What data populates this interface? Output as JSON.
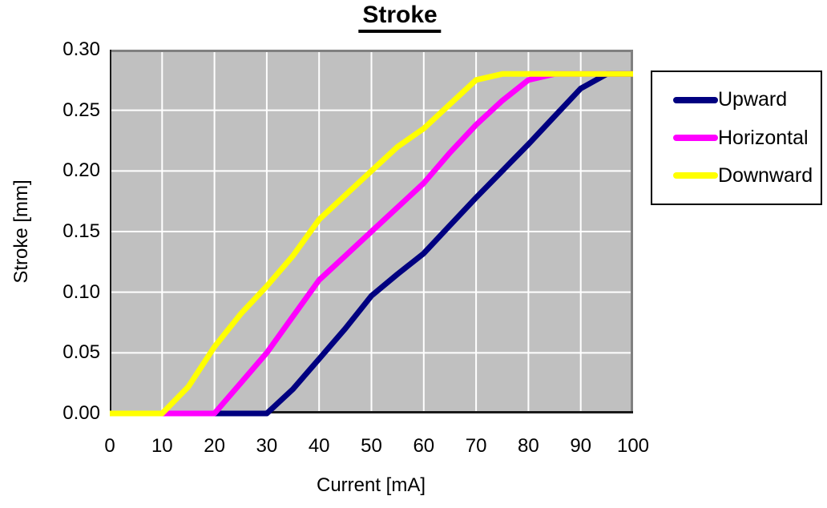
{
  "chart_data": {
    "type": "line",
    "title": "Stroke",
    "xlabel": "Current [mA]",
    "ylabel": "Stroke [mm]",
    "xlim": [
      0,
      100
    ],
    "ylim": [
      0,
      0.3
    ],
    "grid": true,
    "legend_position": "right",
    "plot_bg": "#c0c0c0",
    "gridline_color": "#ffffff",
    "border_gray": "#808080",
    "axis_black": "#1a1a1a",
    "x_ticks": [
      "0",
      "10",
      "20",
      "30",
      "40",
      "50",
      "60",
      "70",
      "80",
      "90",
      "100"
    ],
    "y_ticks": [
      "0.00",
      "0.05",
      "0.10",
      "0.15",
      "0.20",
      "0.25",
      "0.30"
    ],
    "x": [
      0,
      5,
      10,
      15,
      20,
      25,
      30,
      35,
      40,
      45,
      50,
      55,
      60,
      65,
      70,
      75,
      80,
      85,
      90,
      95,
      100
    ],
    "series": [
      {
        "name": "Upward",
        "color": "#000080",
        "values": [
          0,
          0,
          0,
          0,
          0,
          0,
          0,
          0.02,
          0.045,
          0.07,
          0.097,
          0.115,
          0.132,
          0.155,
          0.178,
          0.2,
          0.222,
          0.245,
          0.268,
          0.28,
          0.28
        ]
      },
      {
        "name": "Horizontal",
        "color": "#ff00ff",
        "values": [
          0,
          0,
          0,
          0,
          0,
          0.025,
          0.05,
          0.08,
          0.11,
          0.13,
          0.15,
          0.17,
          0.19,
          0.215,
          0.238,
          0.258,
          0.275,
          0.28,
          0.28,
          0.28,
          0.28
        ]
      },
      {
        "name": "Downward",
        "color": "#ffff00",
        "values": [
          0,
          0,
          0,
          0.022,
          0.055,
          0.082,
          0.105,
          0.13,
          0.16,
          0.18,
          0.2,
          0.22,
          0.235,
          0.255,
          0.275,
          0.28,
          0.28,
          0.28,
          0.28,
          0.28,
          0.28
        ]
      }
    ]
  }
}
